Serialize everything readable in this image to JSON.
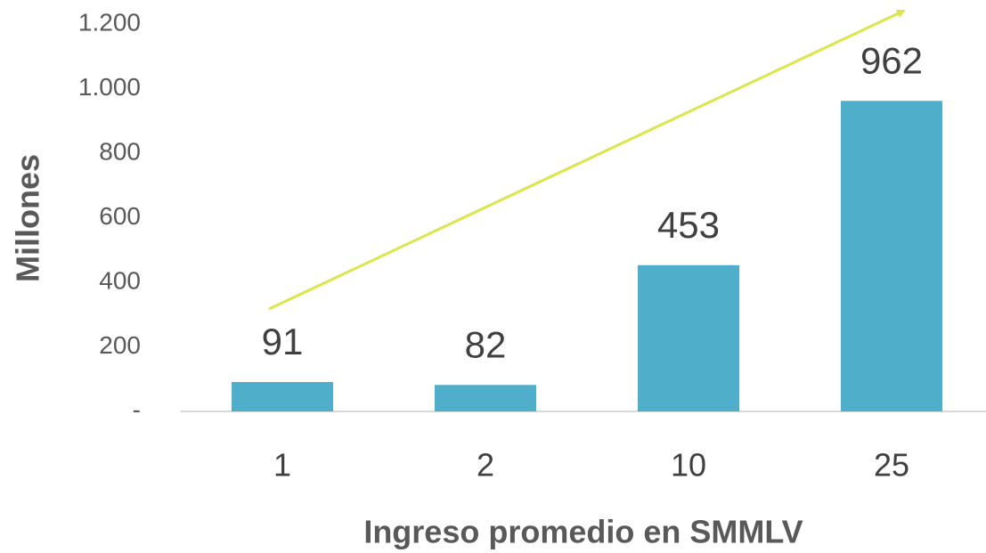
{
  "chart_data": {
    "type": "bar",
    "x_label": "Ingreso promedio en SMMLV",
    "y_label": "Millones",
    "categories": [
      "1",
      "2",
      "10",
      "25"
    ],
    "values": [
      91,
      82,
      453,
      962
    ],
    "color": "#4fafca",
    "ylim": [
      0,
      1200
    ],
    "yticks": [
      {
        "value": 0,
        "label": "-"
      },
      200,
      400,
      600,
      800,
      {
        "value": 1000,
        "label": "1.000"
      },
      {
        "value": 1200,
        "label": "1.200"
      }
    ],
    "grid": false
  }
}
